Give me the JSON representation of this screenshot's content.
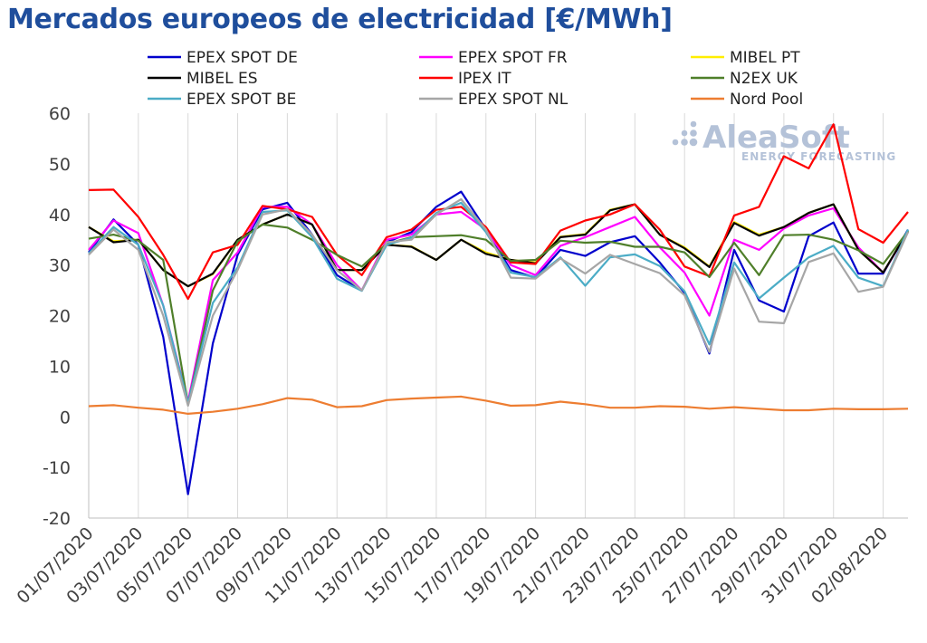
{
  "title": "Mercados europeos de electricidad [€/MWh]",
  "logo": {
    "name": "AleaSoft",
    "tagline": "ENERGY FORECASTING",
    "color": "#b4c2d8"
  },
  "chart_data": {
    "type": "line",
    "title": "Mercados europeos de electricidad [€/MWh]",
    "xlabel": "",
    "ylabel": "",
    "ylim": [
      -20,
      60
    ],
    "yticks": [
      -20,
      -10,
      0,
      10,
      20,
      30,
      40,
      50,
      60
    ],
    "grid": "vertical",
    "legend_position": "top",
    "x": [
      "01/07/2020",
      "02/07/2020",
      "03/07/2020",
      "04/07/2020",
      "05/07/2020",
      "06/07/2020",
      "07/07/2020",
      "08/07/2020",
      "09/07/2020",
      "10/07/2020",
      "11/07/2020",
      "12/07/2020",
      "13/07/2020",
      "14/07/2020",
      "15/07/2020",
      "16/07/2020",
      "17/07/2020",
      "18/07/2020",
      "19/07/2020",
      "20/07/2020",
      "21/07/2020",
      "22/07/2020",
      "23/07/2020",
      "24/07/2020",
      "25/07/2020",
      "26/07/2020",
      "27/07/2020",
      "28/07/2020",
      "29/07/2020",
      "30/07/2020",
      "31/07/2020",
      "01/08/2020",
      "02/08/2020",
      "03/08/2020"
    ],
    "xtick_labels": [
      "01/07/2020",
      "03/07/2020",
      "05/07/2020",
      "07/07/2020",
      "09/07/2020",
      "11/07/2020",
      "13/07/2020",
      "15/07/2020",
      "17/07/2020",
      "19/07/2020",
      "21/07/2020",
      "23/07/2020",
      "25/07/2020",
      "27/07/2020",
      "29/07/2020",
      "31/07/2020",
      "02/08/2020"
    ],
    "series": [
      {
        "name": "EPEX SPOT DE",
        "color": "#0000cc",
        "values": [
          32.5,
          39,
          34,
          15.8,
          -15.3,
          14.5,
          32,
          41,
          42.3,
          36,
          28,
          25,
          34.5,
          36.5,
          41.5,
          44.5,
          37,
          29,
          27.5,
          33,
          31.8,
          34.5,
          35.7,
          30.5,
          24.5,
          12.5,
          33,
          23,
          20.8,
          35.7,
          38.4,
          28.3,
          28.3,
          37
        ]
      },
      {
        "name": "EPEX SPOT FR",
        "color": "#ff00ff",
        "values": [
          33,
          38.8,
          36.3,
          22,
          3,
          27,
          32.5,
          41.5,
          41.5,
          38,
          30,
          25,
          35,
          36,
          40,
          40.5,
          37,
          30,
          28,
          33.8,
          35.5,
          37.5,
          39.5,
          33.5,
          28.5,
          20,
          35,
          33,
          37.2,
          39.8,
          41.2,
          33.5,
          28.5,
          36.5
        ]
      },
      {
        "name": "MIBEL PT",
        "color": "#ffee00",
        "values": [
          37.5,
          34.7,
          35,
          29,
          25.8,
          28.2,
          35,
          38,
          40,
          38,
          29,
          29,
          34,
          33.7,
          31,
          35,
          32.5,
          31,
          30.5,
          35.6,
          36.1,
          40.9,
          42,
          36,
          33.5,
          29.7,
          38.5,
          36,
          37.5,
          40.3,
          42,
          33,
          28.5,
          36.8
        ]
      },
      {
        "name": "MIBEL ES",
        "color": "#000000",
        "values": [
          37.5,
          34.5,
          35,
          29,
          25.8,
          28.3,
          35,
          38,
          40,
          38,
          29,
          29,
          34,
          33.6,
          31,
          35,
          32.2,
          31,
          30.3,
          35.5,
          36,
          40.8,
          42,
          36,
          33.3,
          29.6,
          38.3,
          35.8,
          37.5,
          40.3,
          42,
          33,
          28.5,
          36.7
        ]
      },
      {
        "name": "IPEX IT",
        "color": "#ff0000",
        "values": [
          44.8,
          44.9,
          39.5,
          32,
          23.3,
          32.5,
          34,
          41.7,
          41,
          39.5,
          32,
          28,
          35.5,
          37,
          40.9,
          41.5,
          37.5,
          30.5,
          30.2,
          36.8,
          38.8,
          40,
          42,
          37,
          29.7,
          27.8,
          39.8,
          41.5,
          51.5,
          49.1,
          57.8,
          37.1,
          34.4,
          40.5
        ]
      },
      {
        "name": "N2EX UK",
        "color": "#4f7f2a",
        "values": [
          35.2,
          36,
          34.8,
          31,
          2.5,
          25,
          34.7,
          38,
          37.4,
          35,
          32,
          29.7,
          34.2,
          35.5,
          35.7,
          35.9,
          35,
          30.8,
          31,
          34.8,
          34.4,
          34.6,
          33.6,
          33.6,
          32.5,
          27.6,
          34.4,
          28,
          35.9,
          36,
          35,
          32.9,
          30.2,
          36.7
        ]
      },
      {
        "name": "EPEX SPOT BE",
        "color": "#4bacc6",
        "values": [
          32.3,
          37.5,
          34,
          22,
          2.7,
          22.5,
          29.5,
          40.5,
          40.8,
          35.5,
          27.3,
          24.9,
          34,
          35.4,
          40.3,
          42.3,
          36.5,
          28.5,
          27.6,
          31.5,
          25.9,
          31.5,
          32.1,
          29.8,
          24.8,
          14.3,
          30.5,
          23.4,
          27.5,
          31.5,
          33.8,
          27.5,
          25.8,
          37
        ]
      },
      {
        "name": "EPEX SPOT NL",
        "color": "#a6a6a6",
        "values": [
          32,
          37,
          33,
          20,
          2.2,
          20,
          29,
          40,
          41,
          36,
          29,
          25,
          34.5,
          35,
          40,
          43,
          37,
          27.5,
          27.3,
          31.3,
          28.3,
          32,
          30.2,
          28.4,
          24,
          12.8,
          29.3,
          18.8,
          18.5,
          30.6,
          32.3,
          24.7,
          25.7,
          36.5
        ]
      },
      {
        "name": "Nord Pool",
        "color": "#ed7d31",
        "values": [
          2.1,
          2.3,
          1.8,
          1.4,
          0.6,
          1,
          1.6,
          2.5,
          3.7,
          3.4,
          1.9,
          2.1,
          3.3,
          3.6,
          3.8,
          4,
          3.2,
          2.2,
          2.3,
          3,
          2.5,
          1.8,
          1.8,
          2.1,
          2,
          1.6,
          1.9,
          1.6,
          1.3,
          1.3,
          1.6,
          1.5,
          1.5,
          1.6
        ]
      }
    ]
  }
}
